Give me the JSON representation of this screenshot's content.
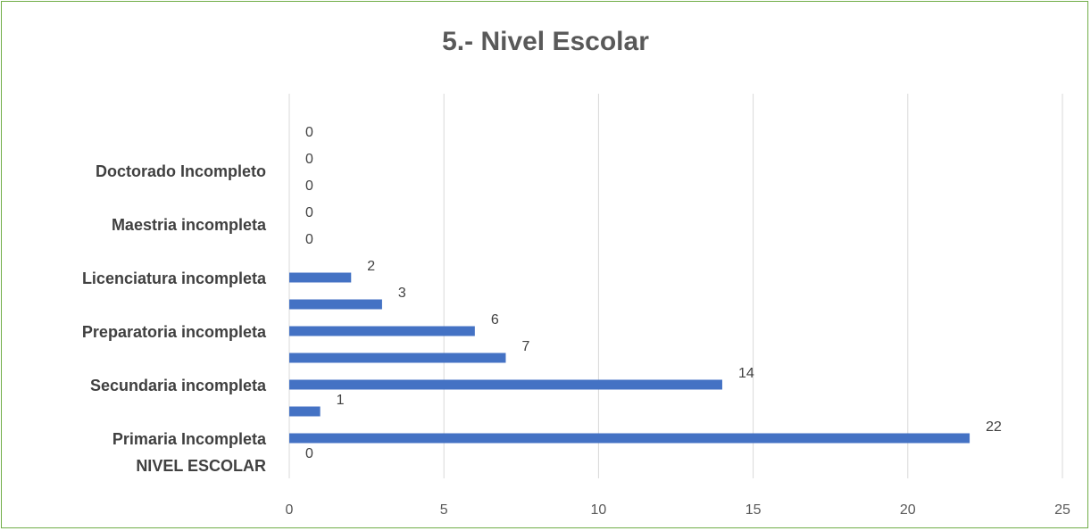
{
  "chart_data": {
    "type": "bar",
    "orientation": "horizontal",
    "title": "5.- Nivel Escolar",
    "categories": [
      "NIVEL ESCOLAR",
      "Primaria Incompleta",
      "",
      "Secundaria incompleta",
      "",
      "Preparatoria incompleta",
      "",
      "Licenciatura incompleta",
      "",
      "Maestria incompleta",
      "",
      "Doctorado Incompleto",
      ""
    ],
    "values": [
      0,
      22,
      1,
      14,
      7,
      6,
      3,
      2,
      0,
      0,
      0,
      0,
      0
    ],
    "xlim": [
      0,
      25
    ],
    "xticks": [
      0,
      5,
      10,
      15,
      20,
      25
    ],
    "grid": true,
    "legend": "none",
    "colors": {
      "bar": "#4472c4",
      "frame": "#70ad47",
      "grid": "#d9d9d9"
    }
  }
}
